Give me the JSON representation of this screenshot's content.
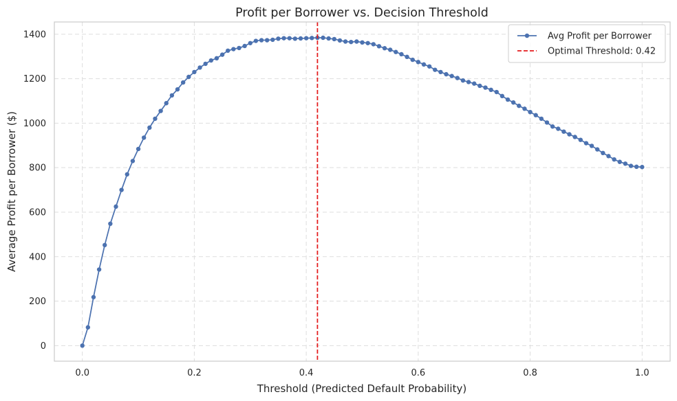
{
  "chart_data": {
    "type": "line",
    "title": "Profit per Borrower vs. Decision Threshold",
    "xlabel": "Threshold (Predicted Default Probability)",
    "ylabel": "Average Profit per Borrower ($)",
    "xlim": [
      -0.05,
      1.05
    ],
    "ylim": [
      -70,
      1455
    ],
    "xticks": [
      0.0,
      0.2,
      0.4,
      0.6,
      0.8,
      1.0
    ],
    "xtick_labels": [
      "0.0",
      "0.2",
      "0.4",
      "0.6",
      "0.8",
      "1.0"
    ],
    "yticks": [
      0,
      200,
      400,
      600,
      800,
      1000,
      1200,
      1400
    ],
    "ytick_labels": [
      "0",
      "200",
      "400",
      "600",
      "800",
      "1000",
      "1200",
      "1400"
    ],
    "grid": true,
    "legend_position": "top-right",
    "series": [
      {
        "name": "Avg Profit per Borrower",
        "color": "#4c72b0",
        "marker": "circle",
        "x": [
          0.0,
          0.01,
          0.02,
          0.03,
          0.04,
          0.05,
          0.06,
          0.07,
          0.08,
          0.09,
          0.1,
          0.11,
          0.12,
          0.13,
          0.14,
          0.15,
          0.16,
          0.17,
          0.18,
          0.19,
          0.2,
          0.21,
          0.22,
          0.23,
          0.24,
          0.25,
          0.26,
          0.27,
          0.28,
          0.29,
          0.3,
          0.31,
          0.32,
          0.33,
          0.34,
          0.35,
          0.36,
          0.37,
          0.38,
          0.39,
          0.4,
          0.41,
          0.42,
          0.43,
          0.44,
          0.45,
          0.46,
          0.47,
          0.48,
          0.49,
          0.5,
          0.51,
          0.52,
          0.53,
          0.54,
          0.55,
          0.56,
          0.57,
          0.58,
          0.59,
          0.6,
          0.61,
          0.62,
          0.63,
          0.64,
          0.65,
          0.66,
          0.67,
          0.68,
          0.69,
          0.7,
          0.71,
          0.72,
          0.73,
          0.74,
          0.75,
          0.76,
          0.77,
          0.78,
          0.79,
          0.8,
          0.81,
          0.82,
          0.83,
          0.84,
          0.85,
          0.86,
          0.87,
          0.88,
          0.89,
          0.9,
          0.91,
          0.92,
          0.93,
          0.94,
          0.95,
          0.96,
          0.97,
          0.98,
          0.99,
          1.0
        ],
        "y": [
          0,
          82,
          218,
          342,
          452,
          548,
          625,
          700,
          770,
          830,
          884,
          935,
          980,
          1020,
          1055,
          1090,
          1125,
          1152,
          1183,
          1208,
          1230,
          1250,
          1267,
          1282,
          1292,
          1308,
          1326,
          1333,
          1338,
          1347,
          1360,
          1370,
          1373,
          1373,
          1375,
          1380,
          1382,
          1382,
          1380,
          1381,
          1382,
          1383,
          1384,
          1384,
          1381,
          1378,
          1372,
          1367,
          1365,
          1367,
          1363,
          1360,
          1355,
          1346,
          1337,
          1330,
          1320,
          1310,
          1298,
          1285,
          1275,
          1264,
          1255,
          1240,
          1230,
          1220,
          1212,
          1203,
          1192,
          1185,
          1178,
          1168,
          1160,
          1150,
          1140,
          1122,
          1106,
          1093,
          1078,
          1065,
          1050,
          1036,
          1020,
          1003,
          985,
          975,
          962,
          950,
          938,
          925,
          910,
          898,
          882,
          866,
          852,
          837,
          826,
          818,
          808,
          804,
          803
        ]
      }
    ],
    "vline": {
      "x": 0.42,
      "label": "Optimal Threshold: 0.42",
      "color": "#e41a1c"
    }
  }
}
